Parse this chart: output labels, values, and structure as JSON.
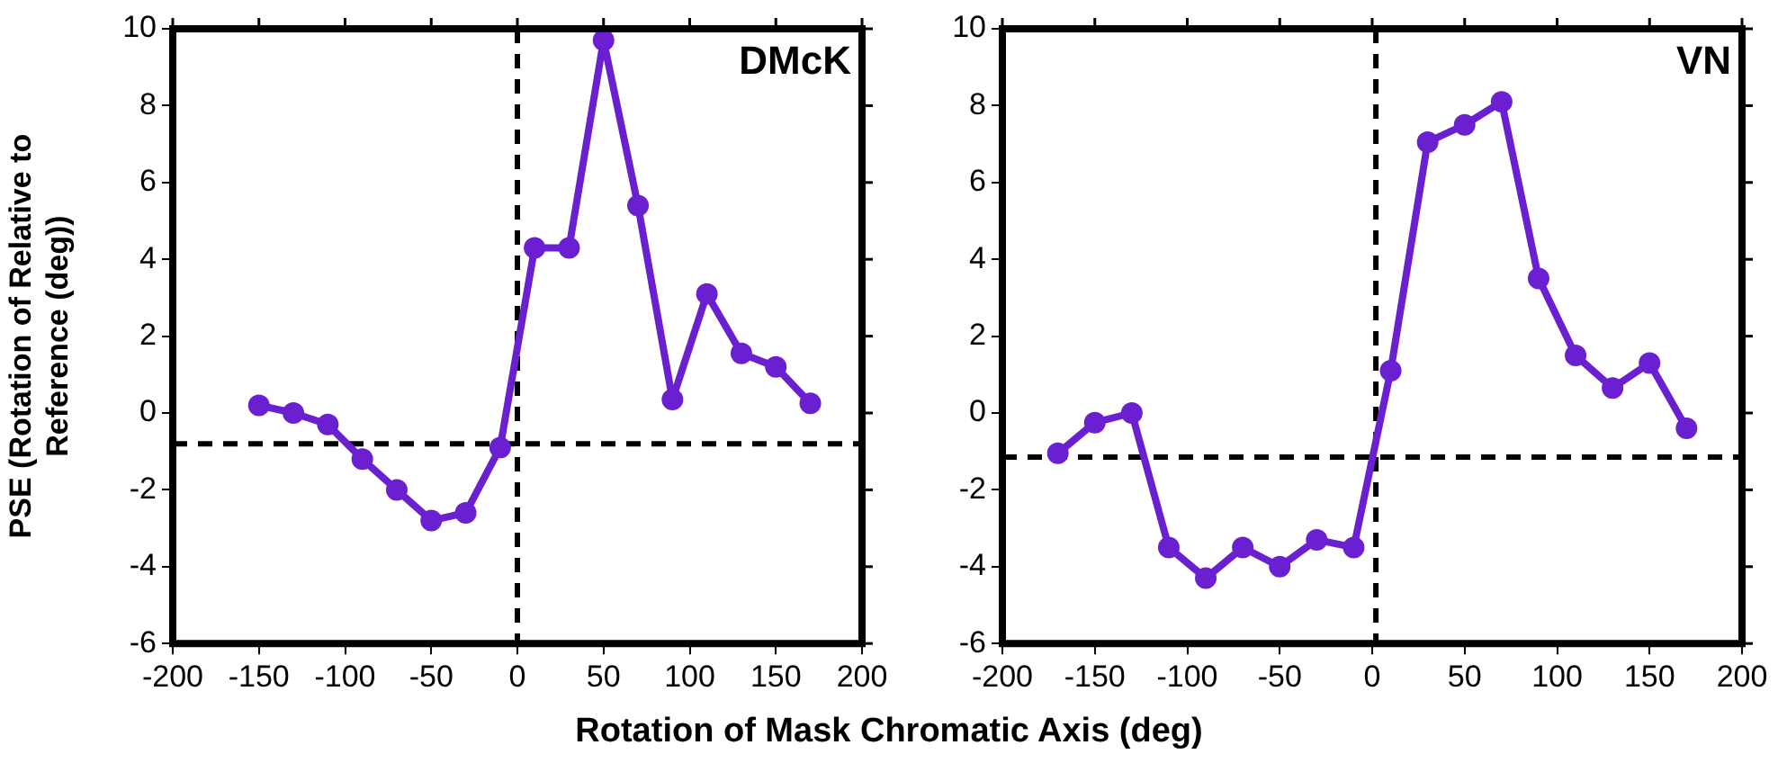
{
  "chart_data": [
    {
      "type": "line",
      "ylabel": "PSE (Rotation of Relative to Reference (deg))",
      "xlabel": "Rotation of Mask Chromatic Axis (deg)",
      "annotations": [
        "DMcK"
      ],
      "xlim": [
        -200,
        200
      ],
      "xticks": [
        -200,
        -150,
        -100,
        -50,
        0,
        50,
        100,
        150,
        200
      ],
      "ylim": [
        -6,
        10
      ],
      "yticks": [
        -6,
        -4,
        -2,
        0,
        2,
        4,
        6,
        8,
        10
      ],
      "grid": false,
      "legend": false,
      "marker": "circle",
      "line_style": "solid",
      "series": [
        {
          "color": "#6a1fd0",
          "x": [
            -150,
            -130,
            -110,
            -90,
            -70,
            -50,
            -30,
            -10,
            10,
            30,
            50,
            70,
            90,
            110,
            130,
            150,
            170
          ],
          "values": [
            0.2,
            0,
            -0.3,
            -1.2,
            -2,
            -2.8,
            -2.6,
            -0.9,
            4.3,
            4.3,
            9.7,
            5.4,
            0.35,
            3.1,
            1.55,
            1.2,
            0.25
          ]
        }
      ],
      "ref_lines": [
        {
          "axis": "x",
          "value": 0,
          "color": "#000000",
          "line_style": "dashed"
        },
        {
          "axis": "y",
          "value": -0.8,
          "color": "#000000",
          "line_style": "dashed"
        }
      ]
    },
    {
      "type": "line",
      "annotations": [
        "VN"
      ],
      "xlim": [
        -200,
        200
      ],
      "xticks": [
        -200,
        -150,
        -100,
        -50,
        0,
        50,
        100,
        150,
        200
      ],
      "ylim": [
        -6,
        10
      ],
      "yticks": [
        -6,
        -4,
        -2,
        0,
        2,
        4,
        6,
        8,
        10
      ],
      "grid": false,
      "legend": false,
      "marker": "circle",
      "line_style": "solid",
      "series": [
        {
          "color": "#6a1fd0",
          "x": [
            -170,
            -150,
            -130,
            -110,
            -90,
            -70,
            -50,
            -30,
            -10,
            10,
            30,
            50,
            70,
            90,
            110,
            130,
            150,
            170
          ],
          "values": [
            -1.05,
            -0.25,
            0,
            -3.5,
            -4.3,
            -3.5,
            -4,
            -3.3,
            -3.5,
            1.1,
            7.05,
            7.5,
            8.1,
            3.5,
            1.5,
            0.65,
            1.3,
            -0.4
          ]
        }
      ],
      "ref_lines": [
        {
          "axis": "x",
          "value": 2,
          "color": "#000000",
          "line_style": "dashed"
        },
        {
          "axis": "y",
          "value": -1.15,
          "color": "#000000",
          "line_style": "dashed"
        }
      ]
    }
  ]
}
